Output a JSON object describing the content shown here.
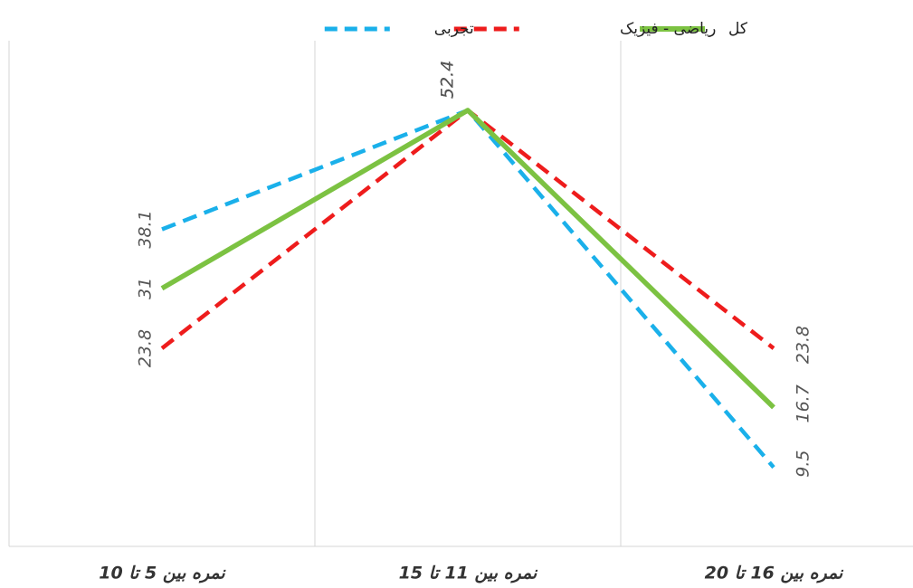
{
  "chart_data": {
    "type": "line",
    "categories": [
      "نمره بین 5 تا 10",
      "نمره بین 11 تا 15",
      "نمره بین 16 تا 20"
    ],
    "series": [
      {
        "name": "تجربی",
        "color": "#1ab0ea",
        "dash": true,
        "values": [
          38.1,
          52.4,
          9.5
        ]
      },
      {
        "name": "ریاضی - فیزیک",
        "color": "#ee1c1c",
        "dash": true,
        "values": [
          23.8,
          52.4,
          23.8
        ]
      },
      {
        "name": "کل",
        "color": "#7cc242",
        "dash": false,
        "values": [
          31,
          52.4,
          16.7
        ]
      }
    ],
    "ylim": [
      0,
      60
    ],
    "grid": true,
    "legend": "top"
  }
}
